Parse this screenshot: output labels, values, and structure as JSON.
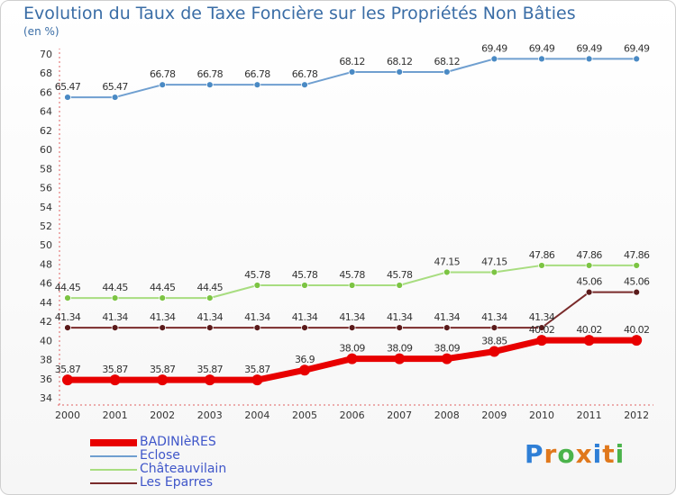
{
  "title": "Evolution du Taux de Taxe Foncière sur les Propriétés Non Bâties",
  "unit_label": "(en %)",
  "logo": {
    "letters": [
      "P",
      "r",
      "o",
      "x",
      "i",
      "t",
      "i"
    ],
    "colors": [
      "#2f7fd6",
      "#e0781c",
      "#4bb34b",
      "#e0781c",
      "#2f7fd6",
      "#e0781c",
      "#4bb34b"
    ]
  },
  "chart_data": {
    "type": "line",
    "x": [
      "2000",
      "2001",
      "2002",
      "2003",
      "2004",
      "2005",
      "2006",
      "2007",
      "2008",
      "2009",
      "2010",
      "2011",
      "2012"
    ],
    "ylim": [
      34,
      70
    ],
    "yticks": [
      34,
      36,
      38,
      40,
      42,
      44,
      46,
      48,
      50,
      52,
      54,
      56,
      58,
      60,
      62,
      64,
      66,
      68,
      70
    ],
    "grid": false,
    "legend_position": "bottom-left",
    "series": [
      {
        "name": "Eclose",
        "color": "#6f9fd0",
        "marker": "#4a8ac4",
        "width": 2,
        "values": [
          65.47,
          65.47,
          66.78,
          66.78,
          66.78,
          66.78,
          68.12,
          68.12,
          68.12,
          69.49,
          69.49,
          69.49,
          69.49
        ],
        "labels": [
          "65.47",
          "65.47",
          "66.78",
          "66.78",
          "66.78",
          "66.78",
          "68.12",
          "68.12",
          "68.12",
          "69.49",
          "69.49",
          "69.49",
          "69.49"
        ]
      },
      {
        "name": "Châteauvilain",
        "color": "#a8dd80",
        "marker": "#7cc443",
        "width": 2,
        "values": [
          44.45,
          44.45,
          44.45,
          44.45,
          45.78,
          45.78,
          45.78,
          45.78,
          47.15,
          47.15,
          47.86,
          47.86,
          47.86
        ],
        "labels": [
          "44.45",
          "44.45",
          "44.45",
          "44.45",
          "45.78",
          "45.78",
          "45.78",
          "45.78",
          "47.15",
          "47.15",
          "47.86",
          "47.86",
          "47.86"
        ]
      },
      {
        "name": "Les Eparres",
        "color": "#7a2b2b",
        "marker": "#5a1a1a",
        "width": 2,
        "values": [
          41.34,
          41.34,
          41.34,
          41.34,
          41.34,
          41.34,
          41.34,
          41.34,
          41.34,
          41.34,
          41.34,
          45.06,
          45.06
        ],
        "labels": [
          "41.34",
          "41.34",
          "41.34",
          "41.34",
          "41.34",
          "41.34",
          "41.34",
          "41.34",
          "41.34",
          "41.34",
          "41.34",
          "45.06",
          "45.06"
        ]
      },
      {
        "name": "BADINIèRES",
        "color": "#e80000",
        "marker": "#e80000",
        "width": 7,
        "values": [
          35.87,
          35.87,
          35.87,
          35.87,
          35.87,
          36.9,
          38.09,
          38.09,
          38.09,
          38.85,
          40.02,
          40.02,
          40.02
        ],
        "labels": [
          "35.87",
          "35.87",
          "35.87",
          "35.87",
          "35.87",
          "36.9",
          "38.09",
          "38.09",
          "38.09",
          "38.85",
          "40.02",
          "40.02",
          "40.02"
        ]
      }
    ],
    "legend_order": [
      "BADINIèRES",
      "Eclose",
      "Châteauvilain",
      "Les Eparres"
    ]
  }
}
